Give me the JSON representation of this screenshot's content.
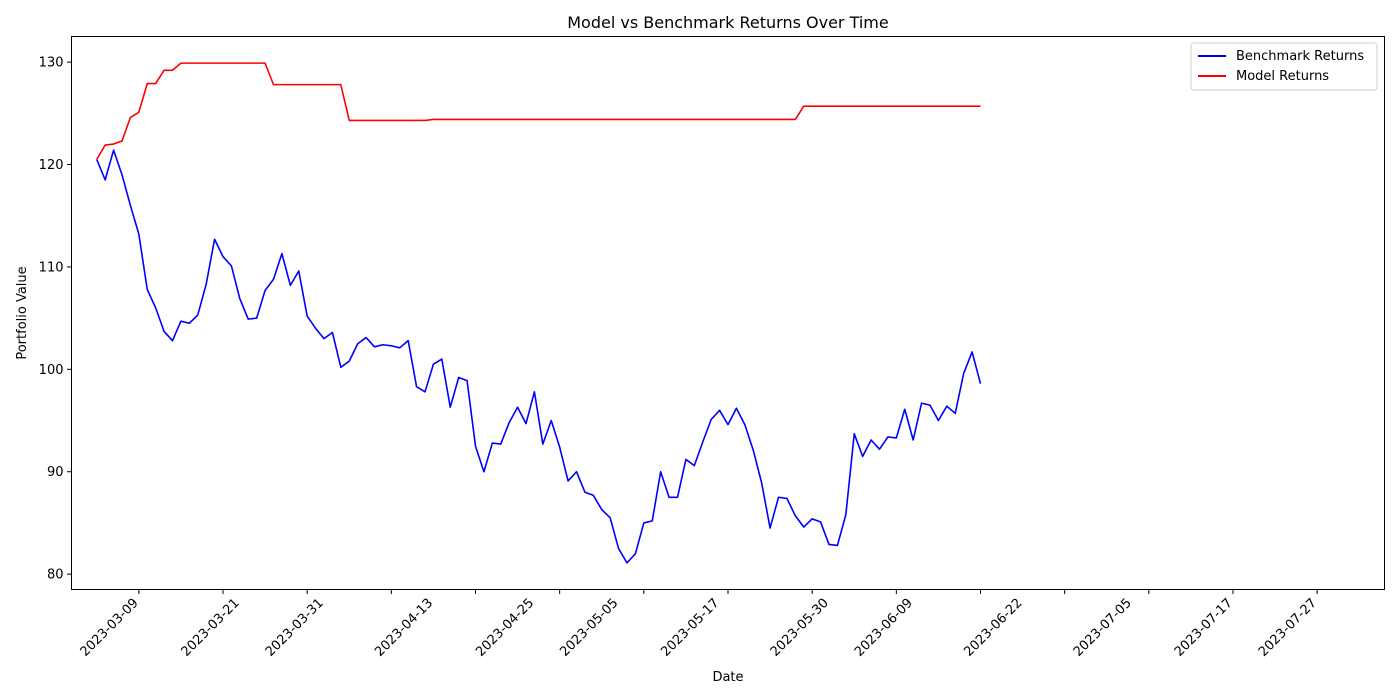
{
  "chart_data": {
    "type": "line",
    "title": "Model vs Benchmark Returns Over Time",
    "xlabel": "Date",
    "ylabel": "Portfolio Value",
    "x_start": "2023-03-01",
    "x_end": "2023-08-04",
    "ylim": [
      78.5,
      132.5
    ],
    "yticks": [
      80,
      90,
      100,
      110,
      120,
      130
    ],
    "xticks": [
      "2023-03-09",
      "2023-03-21",
      "2023-03-31",
      "2023-04-13",
      "2023-04-25",
      "2023-05-05",
      "2023-05-17",
      "2023-05-30",
      "2023-06-09",
      "2023-06-22",
      "2023-07-05",
      "2023-07-17",
      "2023-07-27"
    ],
    "grid": false,
    "legend_position": "top-right",
    "x_dates": [
      "2023-03-04",
      "2023-03-05",
      "2023-03-06",
      "2023-03-07",
      "2023-03-08",
      "2023-03-09",
      "2023-03-10",
      "2023-03-11",
      "2023-03-12",
      "2023-03-13",
      "2023-03-14",
      "2023-03-15",
      "2023-03-16",
      "2023-03-17",
      "2023-03-18",
      "2023-03-19",
      "2023-03-20",
      "2023-03-21",
      "2023-03-22",
      "2023-03-23",
      "2023-03-24",
      "2023-03-25",
      "2023-03-26",
      "2023-03-27",
      "2023-03-28",
      "2023-03-29",
      "2023-03-30",
      "2023-03-31",
      "2023-04-01",
      "2023-04-02",
      "2023-04-03",
      "2023-04-04",
      "2023-04-05",
      "2023-04-06",
      "2023-04-07",
      "2023-04-08",
      "2023-04-09",
      "2023-04-10",
      "2023-04-11",
      "2023-04-12",
      "2023-04-13",
      "2023-04-14",
      "2023-04-15",
      "2023-04-16",
      "2023-04-17",
      "2023-04-18",
      "2023-04-19",
      "2023-04-20",
      "2023-04-21",
      "2023-04-22",
      "2023-04-23",
      "2023-04-24",
      "2023-04-25",
      "2023-04-26",
      "2023-04-27",
      "2023-04-28",
      "2023-04-29",
      "2023-04-30",
      "2023-05-01",
      "2023-05-02",
      "2023-05-03",
      "2023-05-04",
      "2023-05-05",
      "2023-05-06",
      "2023-05-07",
      "2023-05-08",
      "2023-05-09",
      "2023-05-10",
      "2023-05-11",
      "2023-05-12",
      "2023-05-13",
      "2023-05-14",
      "2023-05-15",
      "2023-05-16",
      "2023-05-17",
      "2023-05-18",
      "2023-05-19",
      "2023-05-20",
      "2023-05-21",
      "2023-05-22",
      "2023-05-23",
      "2023-05-24",
      "2023-05-25",
      "2023-05-26",
      "2023-05-27",
      "2023-05-28",
      "2023-05-29",
      "2023-05-30",
      "2023-05-31",
      "2023-06-01",
      "2023-06-02",
      "2023-06-03",
      "2023-06-04",
      "2023-06-05",
      "2023-06-06",
      "2023-06-07",
      "2023-06-08",
      "2023-06-09",
      "2023-06-10",
      "2023-06-11",
      "2023-06-12",
      "2023-06-13",
      "2023-06-14",
      "2023-06-15",
      "2023-06-16",
      "2023-06-17",
      "2023-06-18",
      "2023-06-19",
      "2023-06-20",
      "2023-06-21",
      "2023-06-22",
      "2023-06-23",
      "2023-06-24",
      "2023-06-25",
      "2023-06-26",
      "2023-06-27",
      "2023-06-28",
      "2023-06-29",
      "2023-06-30",
      "2023-07-01",
      "2023-07-02",
      "2023-07-03",
      "2023-07-04",
      "2023-07-05",
      "2023-07-06",
      "2023-07-07",
      "2023-07-08",
      "2023-07-09",
      "2023-07-10",
      "2023-07-11",
      "2023-07-12",
      "2023-07-13",
      "2023-07-14",
      "2023-07-15",
      "2023-07-16",
      "2023-07-17",
      "2023-07-18",
      "2023-07-19",
      "2023-07-20",
      "2023-07-21",
      "2023-07-22",
      "2023-07-23",
      "2023-07-24",
      "2023-07-25",
      "2023-07-26",
      "2023-07-27",
      "2023-07-28",
      "2023-07-29",
      "2023-07-30",
      "2023-07-31",
      "2023-08-01",
      "2023-08-02",
      "2023-08-03"
    ],
    "series": [
      {
        "name": "Benchmark Returns",
        "color": "#0000ff",
        "points": [
          [
            "2023-03-04",
            120.5
          ],
          [
            "2023-03-05",
            118.5
          ],
          [
            "2023-03-06",
            121.4
          ],
          [
            "2023-03-07",
            119.0
          ],
          [
            "2023-03-08",
            116.0
          ],
          [
            "2023-03-09",
            113.2
          ],
          [
            "2023-03-10",
            107.8
          ],
          [
            "2023-03-11",
            106.0
          ],
          [
            "2023-03-12",
            103.7
          ],
          [
            "2023-03-13",
            102.8
          ],
          [
            "2023-03-14",
            104.7
          ],
          [
            "2023-03-15",
            104.5
          ],
          [
            "2023-03-16",
            105.3
          ],
          [
            "2023-03-17",
            108.3
          ],
          [
            "2023-03-18",
            112.7
          ],
          [
            "2023-03-19",
            111.0
          ],
          [
            "2023-03-20",
            110.1
          ],
          [
            "2023-03-21",
            106.9
          ],
          [
            "2023-03-22",
            104.9
          ],
          [
            "2023-03-23",
            105.0
          ],
          [
            "2023-03-24",
            107.7
          ],
          [
            "2023-03-25",
            108.8
          ],
          [
            "2023-03-26",
            111.3
          ],
          [
            "2023-03-27",
            108.2
          ],
          [
            "2023-03-28",
            109.6
          ],
          [
            "2023-03-29",
            105.2
          ],
          [
            "2023-03-30",
            104.0
          ],
          [
            "2023-03-31",
            103.0
          ],
          [
            "2023-04-01",
            103.6
          ],
          [
            "2023-04-02",
            100.2
          ],
          [
            "2023-04-03",
            100.8
          ],
          [
            "2023-04-04",
            102.5
          ],
          [
            "2023-04-05",
            103.1
          ],
          [
            "2023-04-06",
            102.2
          ],
          [
            "2023-04-07",
            102.4
          ],
          [
            "2023-04-08",
            102.3
          ],
          [
            "2023-04-09",
            102.1
          ],
          [
            "2023-04-10",
            102.8
          ],
          [
            "2023-04-11",
            98.3
          ],
          [
            "2023-04-12",
            97.8
          ],
          [
            "2023-04-13",
            100.5
          ],
          [
            "2023-04-14",
            101.0
          ],
          [
            "2023-04-15",
            96.3
          ],
          [
            "2023-04-16",
            99.2
          ],
          [
            "2023-04-17",
            98.9
          ],
          [
            "2023-04-18",
            92.5
          ],
          [
            "2023-04-19",
            90.0
          ],
          [
            "2023-04-20",
            92.8
          ],
          [
            "2023-04-21",
            92.7
          ],
          [
            "2023-04-22",
            94.8
          ],
          [
            "2023-04-23",
            96.3
          ],
          [
            "2023-04-24",
            94.7
          ],
          [
            "2023-04-25",
            97.8
          ],
          [
            "2023-04-26",
            92.7
          ],
          [
            "2023-04-27",
            95.0
          ],
          [
            "2023-04-28",
            92.4
          ],
          [
            "2023-04-29",
            89.1
          ],
          [
            "2023-04-30",
            90.0
          ],
          [
            "2023-05-01",
            88.0
          ],
          [
            "2023-05-02",
            87.7
          ],
          [
            "2023-05-03",
            86.3
          ],
          [
            "2023-05-04",
            85.5
          ],
          [
            "2023-05-05",
            82.5
          ],
          [
            "2023-05-06",
            81.1
          ],
          [
            "2023-05-07",
            82.0
          ],
          [
            "2023-05-08",
            85.0
          ],
          [
            "2023-05-09",
            85.2
          ],
          [
            "2023-05-10",
            90.0
          ],
          [
            "2023-05-11",
            87.5
          ],
          [
            "2023-05-12",
            87.5
          ],
          [
            "2023-05-13",
            91.2
          ],
          [
            "2023-05-14",
            90.6
          ],
          [
            "2023-05-15",
            92.9
          ],
          [
            "2023-05-16",
            95.1
          ],
          [
            "2023-05-17",
            96.0
          ],
          [
            "2023-05-18",
            94.6
          ],
          [
            "2023-05-19",
            96.2
          ],
          [
            "2023-05-20",
            94.6
          ],
          [
            "2023-05-21",
            92.1
          ],
          [
            "2023-05-22",
            88.9
          ],
          [
            "2023-05-23",
            84.5
          ],
          [
            "2023-05-24",
            87.5
          ],
          [
            "2023-05-25",
            87.4
          ],
          [
            "2023-05-26",
            85.7
          ],
          [
            "2023-05-27",
            84.6
          ],
          [
            "2023-05-28",
            85.4
          ],
          [
            "2023-05-29",
            85.1
          ],
          [
            "2023-05-30",
            82.9
          ],
          [
            "2023-05-31",
            82.8
          ],
          [
            "2023-06-01",
            85.8
          ],
          [
            "2023-06-02",
            93.7
          ],
          [
            "2023-06-03",
            91.5
          ],
          [
            "2023-06-04",
            93.1
          ],
          [
            "2023-06-05",
            92.2
          ],
          [
            "2023-06-06",
            93.4
          ],
          [
            "2023-06-07",
            93.3
          ],
          [
            "2023-06-08",
            96.1
          ],
          [
            "2023-06-09",
            93.1
          ],
          [
            "2023-06-10",
            96.7
          ],
          [
            "2023-06-11",
            96.5
          ],
          [
            "2023-06-12",
            95.0
          ],
          [
            "2023-06-13",
            96.4
          ],
          [
            "2023-06-14",
            95.7
          ],
          [
            "2023-06-15",
            99.6
          ],
          [
            "2023-06-16",
            101.7
          ],
          [
            "2023-06-17",
            98.6
          ]
        ]
      },
      {
        "name": "Model Returns",
        "color": "#ff0000",
        "points": [
          [
            "2023-03-04",
            120.5
          ],
          [
            "2023-03-05",
            121.9
          ],
          [
            "2023-03-06",
            122.0
          ],
          [
            "2023-03-07",
            122.3
          ],
          [
            "2023-03-08",
            124.6
          ],
          [
            "2023-03-09",
            125.1
          ],
          [
            "2023-03-10",
            127.9
          ],
          [
            "2023-03-11",
            127.9
          ],
          [
            "2023-03-12",
            129.2
          ],
          [
            "2023-03-13",
            129.2
          ],
          [
            "2023-03-14",
            129.9
          ],
          [
            "2023-03-24",
            129.9
          ],
          [
            "2023-03-25",
            127.8
          ],
          [
            "2023-04-02",
            127.8
          ],
          [
            "2023-04-03",
            124.3
          ],
          [
            "2023-04-12",
            124.3
          ],
          [
            "2023-04-13",
            124.4
          ],
          [
            "2023-05-26",
            124.4
          ],
          [
            "2023-05-27",
            125.7
          ],
          [
            "2023-06-17",
            125.7
          ]
        ]
      }
    ]
  }
}
